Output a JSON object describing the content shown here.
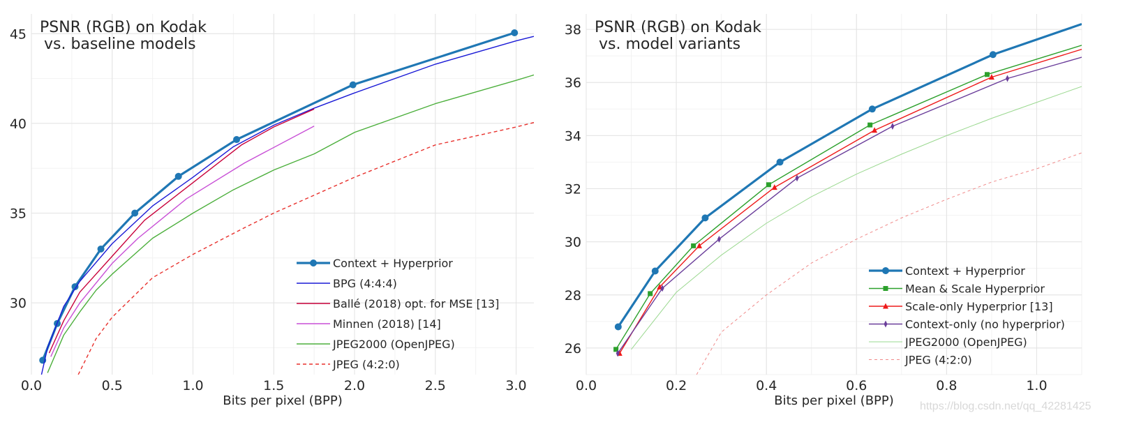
{
  "watermark": "https://blog.csdn.net/qq_42281425",
  "chart_data": [
    {
      "type": "line",
      "title": "PSNR (RGB) on Kodak",
      "subtitle": "vs. baseline models",
      "xlabel": "Bits per pixel (BPP)",
      "ylabel": "",
      "xlim": [
        0,
        3.11
      ],
      "ylim": [
        26,
        46.1
      ],
      "xticks": [
        0.0,
        0.5,
        1.0,
        1.5,
        2.0,
        2.5,
        3.0
      ],
      "xtick_labels": [
        "0.0",
        "0.5",
        "1.0",
        "1.5",
        "2.0",
        "2.5",
        "3.0"
      ],
      "yticks": [
        30,
        35,
        40,
        45
      ],
      "ytick_labels": [
        "30",
        "35",
        "40",
        "45"
      ],
      "grid": true,
      "legend": "bottom-right",
      "series": [
        {
          "name": "Context + Hyperprior",
          "color": "#1f77b4",
          "marker": "circle",
          "style": "solid-thick",
          "x": [
            0.07,
            0.16,
            0.27,
            0.43,
            0.64,
            0.91,
            1.27,
            1.99,
            2.99
          ],
          "y": [
            26.8,
            28.85,
            30.9,
            33.0,
            35.0,
            37.05,
            39.1,
            42.15,
            45.05
          ]
        },
        {
          "name": "BPG (4:4:4)",
          "color": "#1a1ad6",
          "marker": "none",
          "style": "solid",
          "x": [
            0.06,
            0.1,
            0.2,
            0.3,
            0.5,
            0.75,
            1.0,
            1.25,
            1.5,
            1.75,
            2.0,
            2.5,
            3.0,
            3.11
          ],
          "y": [
            25.9,
            27.5,
            29.8,
            31.2,
            33.3,
            35.4,
            37.0,
            38.7,
            39.9,
            40.85,
            41.7,
            43.3,
            44.6,
            44.85
          ]
        },
        {
          "name": "Ballé (2018) opt. for MSE [13]",
          "color": "#c8003a",
          "marker": "none",
          "style": "solid",
          "x": [
            0.11,
            0.2,
            0.3,
            0.5,
            0.7,
            1.0,
            1.3,
            1.5,
            1.75
          ],
          "y": [
            27.2,
            29.0,
            30.6,
            32.6,
            34.6,
            36.7,
            38.8,
            39.8,
            40.8
          ]
        },
        {
          "name": "Minnen (2018) [14]",
          "color": "#c84fd6",
          "marker": "none",
          "style": "solid",
          "x": [
            0.12,
            0.2,
            0.3,
            0.5,
            0.66,
            0.96,
            1.32,
            1.75
          ],
          "y": [
            27.0,
            28.6,
            30.0,
            32.2,
            33.6,
            35.8,
            37.8,
            39.85
          ]
        },
        {
          "name": "JPEG2000 (OpenJPEG)",
          "color": "#4caf3c",
          "marker": "none",
          "style": "solid",
          "x": [
            0.1,
            0.2,
            0.3,
            0.4,
            0.5,
            0.75,
            1.0,
            1.25,
            1.5,
            1.75,
            2.0,
            2.5,
            3.0,
            3.11
          ],
          "y": [
            26.1,
            28.2,
            29.5,
            30.7,
            31.6,
            33.6,
            35.0,
            36.3,
            37.4,
            38.3,
            39.5,
            41.1,
            42.4,
            42.7
          ]
        },
        {
          "name": "JPEG (4:2:0)",
          "color": "#e8302c",
          "marker": "none",
          "style": "dashed",
          "x": [
            0.29,
            0.4,
            0.5,
            0.75,
            1.0,
            1.3,
            1.5,
            1.75,
            2.0,
            2.5,
            3.0,
            3.11
          ],
          "y": [
            26.0,
            28.0,
            29.2,
            31.4,
            32.7,
            34.1,
            35.0,
            36.0,
            37.0,
            38.8,
            39.8,
            40.05
          ]
        }
      ]
    },
    {
      "type": "line",
      "title": "PSNR (RGB) on Kodak",
      "subtitle": "vs. model variants",
      "xlabel": "Bits per pixel (BPP)",
      "ylabel": "",
      "xlim": [
        0,
        1.1
      ],
      "ylim": [
        25,
        38.58
      ],
      "xticks": [
        0.0,
        0.2,
        0.4,
        0.6,
        0.8,
        1.0
      ],
      "xtick_labels": [
        "0.0",
        "0.2",
        "0.4",
        "0.6",
        "0.8",
        "1.0"
      ],
      "yticks": [
        26,
        28,
        30,
        32,
        34,
        36,
        38
      ],
      "ytick_labels": [
        "26",
        "28",
        "30",
        "32",
        "34",
        "36",
        "38"
      ],
      "grid": true,
      "legend": "bottom-right",
      "series": [
        {
          "name": "Context + Hyperprior",
          "color": "#1f77b4",
          "marker": "circle",
          "style": "solid-thick",
          "x": [
            0.071,
            0.153,
            0.264,
            0.43,
            0.635,
            0.903,
            1.1
          ],
          "y": [
            26.8,
            28.9,
            30.9,
            33.0,
            35.0,
            37.05,
            38.2
          ],
          "markers_on": 6
        },
        {
          "name": "Mean & Scale Hyperprior",
          "color": "#2ca02c",
          "marker": "square",
          "style": "solid",
          "x": [
            0.066,
            0.142,
            0.238,
            0.405,
            0.63,
            0.89,
            1.1
          ],
          "y": [
            25.95,
            28.05,
            29.85,
            32.15,
            34.4,
            36.3,
            37.4
          ],
          "markers_on": 6
        },
        {
          "name": "Scale-only Hyperprior [13]",
          "color": "#ee1a1a",
          "marker": "triangle",
          "style": "solid",
          "x": [
            0.074,
            0.163,
            0.251,
            0.418,
            0.64,
            0.9,
            1.1
          ],
          "y": [
            25.8,
            28.3,
            29.85,
            32.05,
            34.2,
            36.2,
            37.25
          ],
          "markers_on": 6
        },
        {
          "name": "Context-only (no hyperprior)",
          "color": "#6a3d9a",
          "marker": "diamond",
          "style": "solid",
          "x": [
            0.07,
            0.169,
            0.295,
            0.468,
            0.68,
            0.935,
            1.1
          ],
          "y": [
            25.8,
            28.25,
            30.1,
            32.4,
            34.35,
            36.15,
            36.95
          ],
          "markers_on": 6
        },
        {
          "name": "JPEG2000 (OpenJPEG)",
          "color": "#9ad88f",
          "marker": "none",
          "style": "solid-thin",
          "x": [
            0.1,
            0.2,
            0.3,
            0.4,
            0.5,
            0.6,
            0.7,
            0.8,
            0.9,
            1.0,
            1.1
          ],
          "y": [
            25.95,
            28.1,
            29.5,
            30.7,
            31.7,
            32.55,
            33.3,
            34.0,
            34.65,
            35.25,
            35.85
          ]
        },
        {
          "name": "JPEG (4:2:0)",
          "color": "#f08a8a",
          "marker": "none",
          "style": "dashed-thin",
          "x": [
            0.245,
            0.3,
            0.4,
            0.5,
            0.6,
            0.7,
            0.8,
            0.9,
            1.0,
            1.1
          ],
          "y": [
            25.0,
            26.6,
            28.0,
            29.2,
            30.1,
            30.9,
            31.6,
            32.25,
            32.75,
            33.35
          ]
        }
      ]
    }
  ]
}
